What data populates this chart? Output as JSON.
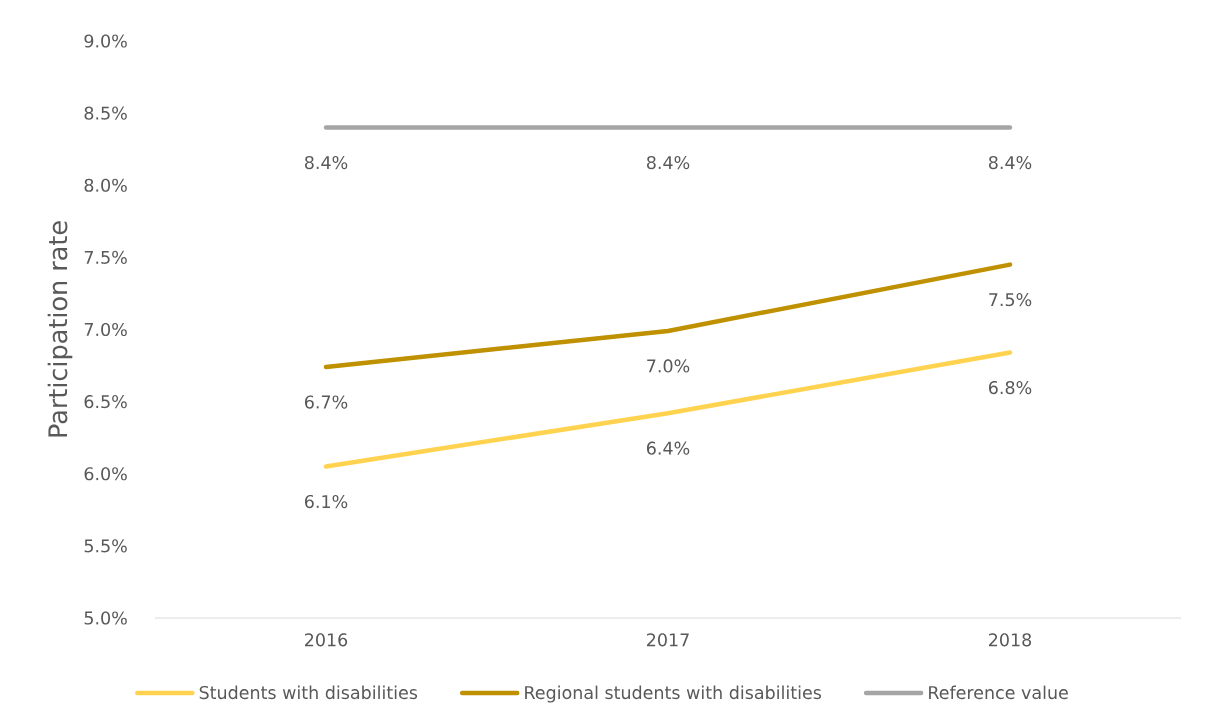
{
  "chart_data": {
    "type": "line",
    "ylabel": "Participation rate",
    "categories": [
      "2016",
      "2017",
      "2018"
    ],
    "series": [
      {
        "name": "Students with disabilities",
        "color": "#ffd34f",
        "values": [
          6.05,
          6.42,
          6.84
        ],
        "value_labels": [
          "6.1%",
          "6.4%",
          "6.8%"
        ]
      },
      {
        "name": "Regional students with disabilities",
        "color": "#bf9000",
        "values": [
          6.74,
          6.99,
          7.45
        ],
        "value_labels": [
          "6.7%",
          "7.0%",
          "7.5%"
        ]
      },
      {
        "name": "Reference value",
        "color": "#a5a5a5",
        "values": [
          8.4,
          8.4,
          8.4
        ],
        "value_labels": [
          "8.4%",
          "8.4%",
          "8.4%"
        ]
      }
    ],
    "ylim": [
      5,
      9
    ],
    "yticks": [
      {
        "value": 5,
        "label": "5.0%"
      },
      {
        "value": 5.5,
        "label": "5.5%"
      },
      {
        "value": 6,
        "label": "6.0%"
      },
      {
        "value": 6.5,
        "label": "6.5%"
      },
      {
        "value": 7,
        "label": "7.0%"
      },
      {
        "value": 7.5,
        "label": "7.5%"
      },
      {
        "value": 8,
        "label": "8.0%"
      },
      {
        "value": 8.5,
        "label": "8.5%"
      },
      {
        "value": 9,
        "label": "9.0%"
      }
    ],
    "legend": "bottom",
    "marker": "none"
  }
}
